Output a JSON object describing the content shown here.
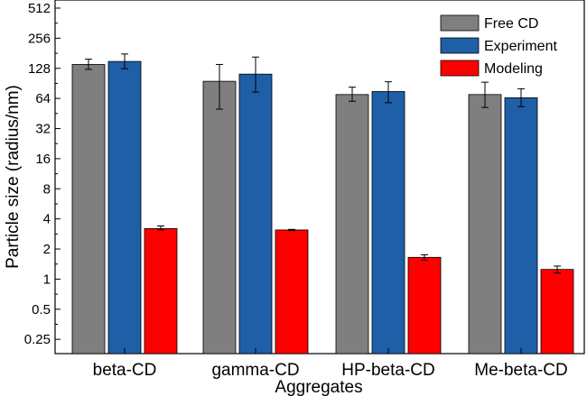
{
  "chart_data": {
    "type": "bar",
    "scale": "log2",
    "title": "",
    "xlabel": "Aggregates",
    "ylabel": "Particle size (radius/nm)",
    "ylim": [
      0.18,
      512
    ],
    "yticks": [
      0.25,
      0.5,
      1,
      2,
      4,
      8,
      16,
      32,
      64,
      128,
      256,
      512
    ],
    "ytick_labels": [
      "0.25",
      "0.5",
      "1",
      "2",
      "4",
      "8",
      "16",
      "32",
      "64",
      "128",
      "256",
      "512"
    ],
    "categories": [
      "beta-CD",
      "gamma-CD",
      "HP-beta-CD",
      "Me-beta-CD"
    ],
    "legend_position": "top-right",
    "series": [
      {
        "name": "Free CD",
        "color": "#7f7f7f",
        "values": [
          140,
          95,
          70,
          70
        ],
        "err_low": [
          125,
          50,
          60,
          52
        ],
        "err_high": [
          158,
          140,
          83,
          93
        ]
      },
      {
        "name": "Experiment",
        "color": "#1f5fa8",
        "values": [
          150,
          112,
          75,
          65
        ],
        "err_low": [
          127,
          74,
          58,
          53
        ],
        "err_high": [
          178,
          166,
          94,
          80
        ]
      },
      {
        "name": "Modeling",
        "color": "#ff0000",
        "values": [
          3.2,
          3.1,
          1.65,
          1.25
        ],
        "err_low": [
          3.1,
          3.06,
          1.55,
          1.15
        ],
        "err_high": [
          3.4,
          3.14,
          1.75,
          1.35
        ]
      }
    ]
  }
}
